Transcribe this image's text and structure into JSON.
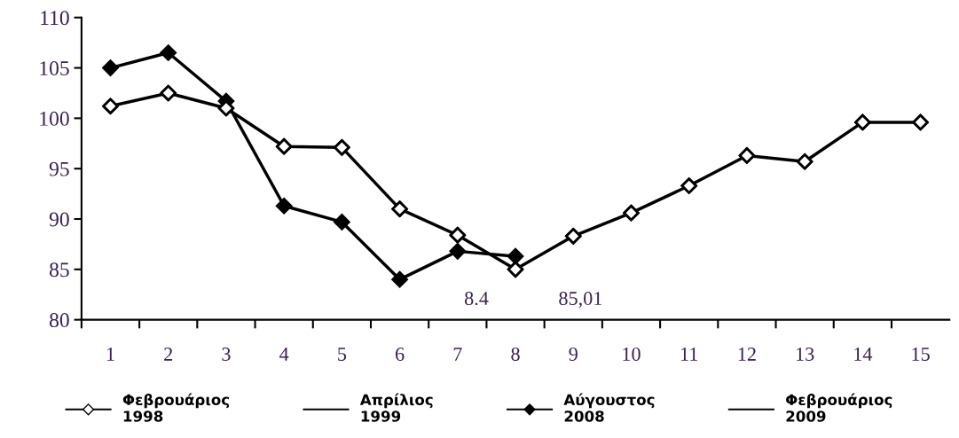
{
  "chart_data": {
    "type": "line",
    "categories": [
      "1",
      "2",
      "3",
      "4",
      "5",
      "6",
      "7",
      "8",
      "9",
      "10",
      "11",
      "12",
      "13",
      "14",
      "15"
    ],
    "series": [
      {
        "name": "Φεβρουάριος\n1998",
        "color": "#000000",
        "marker": "diamond",
        "colors": [
          "#ffffff",
          "#ffffff",
          "#ffffff",
          "#ffffff",
          "#ffffff",
          "#ffffff",
          "#ffffff",
          "#ffffff",
          "#ffffff",
          "#ffffff",
          "#ffffff",
          "#ffffff",
          "#ffffff",
          "#ffffff",
          "#ffffff"
        ],
        "values": [
          101.2,
          102.5,
          101.0,
          97.2,
          97.1,
          91.0,
          88.4,
          85.0,
          88.3,
          90.6,
          93.3,
          96.3,
          95.7,
          99.6,
          99.6
        ]
      },
      {
        "name": "Απρίλιος\n1999",
        "color": "#000000",
        "marker": "none",
        "values": [
          null,
          null,
          null,
          null,
          null,
          null,
          null,
          null,
          null,
          null,
          null,
          null,
          null,
          null,
          null
        ]
      },
      {
        "name": "Αύγουστος\n2008",
        "color": "#000000",
        "marker": "diamond",
        "values": [
          105.0,
          106.5,
          101.7,
          91.3,
          89.7,
          84.0,
          86.8,
          86.3,
          null,
          null,
          null,
          null,
          null,
          null,
          null
        ]
      },
      {
        "name": "Φεβρουάριος\n2009",
        "color": "#000000",
        "marker": "none",
        "values": [
          null,
          null,
          null,
          null,
          null,
          null,
          null,
          null,
          null,
          null,
          null,
          null,
          null,
          null,
          null
        ]
      }
    ],
    "ylim": [
      80,
      110
    ],
    "yticks": [
      80,
      85,
      90,
      95,
      100,
      105,
      110
    ],
    "annotations": [
      "8.4",
      "85,01"
    ],
    "grid": false,
    "legend": "bottom",
    "line_style": "solid"
  }
}
